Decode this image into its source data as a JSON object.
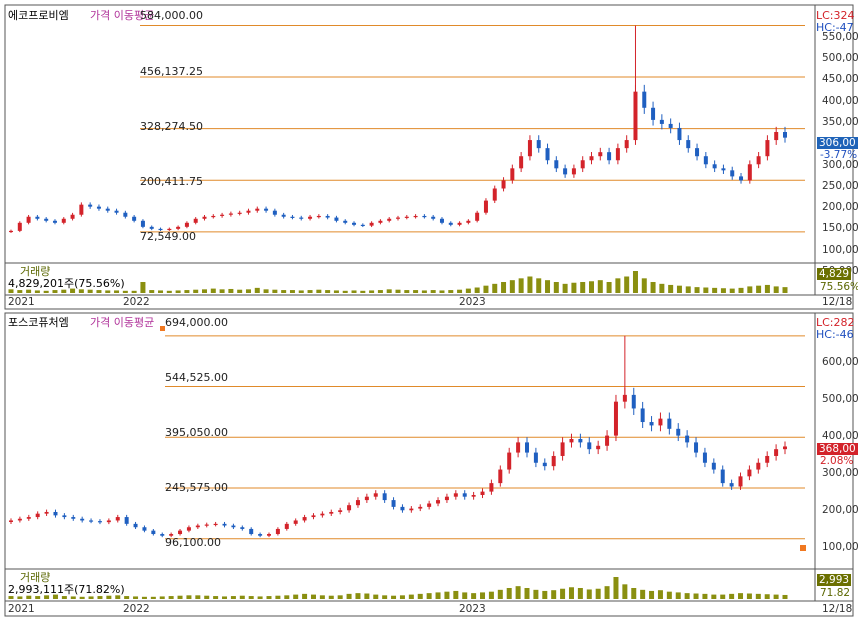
{
  "charts": [
    {
      "name": "에코프로비엠",
      "indicator": "가격 이동평균",
      "lc": "LC:324",
      "hc": "HC:-47",
      "price_tag": "306,00",
      "change_tag": "-3.77%",
      "volume_title": "거래량",
      "volume_value": "4,829,201주(75.56%)",
      "volume_tag": "4,829",
      "volume_pct_tag": "75.56%",
      "year_labels": [
        "2021",
        "2022",
        "2023"
      ],
      "end_label": "12/18",
      "fibo_labels": [
        "584,000.00",
        "456,137.25",
        "328,274.50",
        "200,411.75",
        "72,549.00"
      ],
      "y_ticks": [
        "550,00",
        "500,00",
        "450,00",
        "400,00",
        "350,00",
        "300,00",
        "250,00",
        "200,00",
        "150,00",
        "100,00",
        "50,000"
      ]
    },
    {
      "name": "포스코퓨처엠",
      "indicator": "가격 이동평균",
      "lc": "LC:282",
      "hc": "HC:-46",
      "price_tag": "368,00",
      "change_tag": "2.08%",
      "volume_title": "거래량",
      "volume_value": "2,993,111주(71.82%)",
      "volume_tag": "2,993",
      "volume_pct_tag": "71.82",
      "year_labels": [
        "2021",
        "2022",
        "2023"
      ],
      "end_label": "12/18",
      "fibo_labels": [
        "694,000.00",
        "544,525.00",
        "395,050.00",
        "245,575.00",
        "96,100.00"
      ],
      "y_ticks": [
        "600,00",
        "500,00",
        "400,00",
        "300,00",
        "200,00",
        "100,00"
      ]
    }
  ],
  "chart_data": [
    {
      "type": "candlestick",
      "title": "에코프로비엠",
      "ylim": [
        40000,
        600000
      ],
      "fibonacci_levels": [
        584000,
        456137.25,
        328274.5,
        200411.75,
        72549
      ],
      "close": [
        75000,
        95000,
        110000,
        105000,
        100000,
        95000,
        105000,
        115000,
        140000,
        135000,
        130000,
        125000,
        120000,
        110000,
        100000,
        85000,
        80000,
        78000,
        80000,
        85000,
        95000,
        105000,
        110000,
        112000,
        115000,
        118000,
        120000,
        125000,
        130000,
        125000,
        115000,
        110000,
        108000,
        105000,
        110000,
        112000,
        108000,
        100000,
        95000,
        90000,
        88000,
        95000,
        100000,
        105000,
        108000,
        110000,
        112000,
        110000,
        105000,
        95000,
        90000,
        95000,
        100000,
        120000,
        150000,
        180000,
        200000,
        230000,
        260000,
        300000,
        280000,
        250000,
        230000,
        215000,
        230000,
        250000,
        260000,
        270000,
        250000,
        280000,
        300000,
        420000,
        380000,
        350000,
        340000,
        330000,
        300000,
        280000,
        260000,
        240000,
        230000,
        225000,
        210000,
        200000,
        240000,
        260000,
        300000,
        320000,
        306000
      ],
      "volume_pct": [
        10,
        8,
        9,
        7,
        6,
        8,
        9,
        12,
        10,
        9,
        8,
        7,
        7,
        6,
        6,
        30,
        8,
        7,
        6,
        7,
        8,
        9,
        10,
        12,
        10,
        11,
        9,
        10,
        14,
        10,
        9,
        8,
        8,
        7,
        8,
        9,
        8,
        7,
        6,
        7,
        6,
        7,
        8,
        10,
        9,
        8,
        8,
        7,
        8,
        7,
        8,
        9,
        12,
        15,
        20,
        25,
        30,
        35,
        40,
        45,
        40,
        35,
        30,
        25,
        28,
        30,
        32,
        35,
        30,
        40,
        45,
        60,
        40,
        30,
        25,
        22,
        20,
        18,
        16,
        15,
        14,
        13,
        12,
        14,
        18,
        20,
        22,
        18,
        16
      ]
    },
    {
      "type": "candlestick",
      "title": "포스코퓨처엠",
      "ylim": [
        60000,
        720000
      ],
      "fibonacci_levels": [
        694000,
        544525,
        395050,
        245575,
        96100
      ],
      "close": [
        150000,
        155000,
        160000,
        170000,
        175000,
        165000,
        160000,
        155000,
        150000,
        148000,
        145000,
        150000,
        160000,
        140000,
        130000,
        120000,
        110000,
        105000,
        110000,
        120000,
        130000,
        135000,
        138000,
        140000,
        135000,
        130000,
        125000,
        110000,
        105000,
        110000,
        125000,
        140000,
        150000,
        160000,
        165000,
        170000,
        175000,
        180000,
        195000,
        210000,
        220000,
        230000,
        210000,
        190000,
        180000,
        185000,
        190000,
        200000,
        210000,
        220000,
        230000,
        220000,
        225000,
        235000,
        260000,
        300000,
        350000,
        380000,
        350000,
        320000,
        310000,
        340000,
        380000,
        390000,
        380000,
        360000,
        370000,
        400000,
        500000,
        520000,
        480000,
        440000,
        430000,
        450000,
        420000,
        400000,
        380000,
        350000,
        320000,
        300000,
        260000,
        250000,
        280000,
        300000,
        320000,
        340000,
        360000,
        368000
      ],
      "volume_pct": [
        8,
        7,
        9,
        8,
        10,
        12,
        8,
        7,
        6,
        7,
        8,
        9,
        10,
        8,
        7,
        6,
        6,
        7,
        8,
        9,
        10,
        10,
        9,
        8,
        7,
        8,
        9,
        8,
        7,
        8,
        9,
        10,
        12,
        14,
        12,
        10,
        9,
        10,
        14,
        16,
        15,
        12,
        10,
        9,
        10,
        12,
        14,
        16,
        18,
        20,
        22,
        18,
        16,
        18,
        20,
        25,
        30,
        35,
        30,
        25,
        22,
        24,
        28,
        32,
        30,
        26,
        28,
        35,
        60,
        40,
        30,
        25,
        22,
        24,
        20,
        18,
        16,
        15,
        14,
        12,
        12,
        14,
        16,
        15,
        14,
        13,
        12,
        11
      ]
    }
  ]
}
